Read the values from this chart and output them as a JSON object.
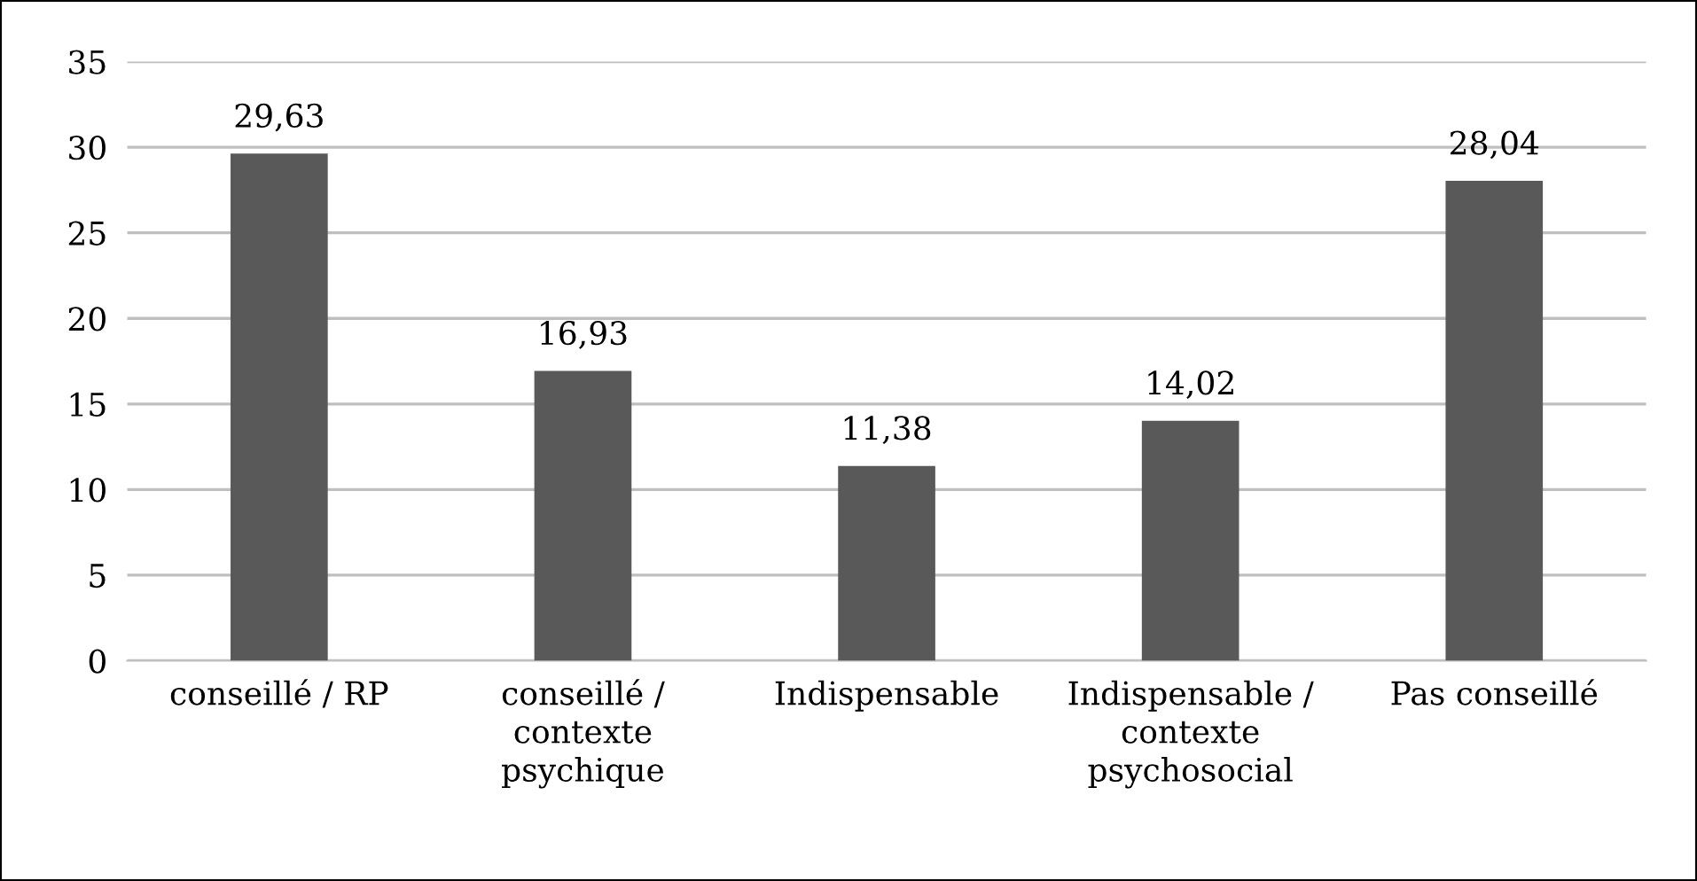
{
  "chart_data": {
    "type": "bar",
    "categories": [
      "conseillé / RP",
      "conseillé /\ncontexte\npsychique",
      "Indispensable",
      "Indispensable /\ncontexte\npsychosocial",
      "Pas conseillé"
    ],
    "values": [
      29.63,
      16.93,
      11.38,
      14.02,
      28.04
    ],
    "value_labels": [
      "29,63",
      "16,93",
      "11,38",
      "14,02",
      "28,04"
    ],
    "color": "#595959",
    "ylim": [
      0,
      35
    ],
    "yticks": [
      0,
      5,
      10,
      15,
      20,
      25,
      30,
      35
    ],
    "grid": "y",
    "legend": false
  }
}
